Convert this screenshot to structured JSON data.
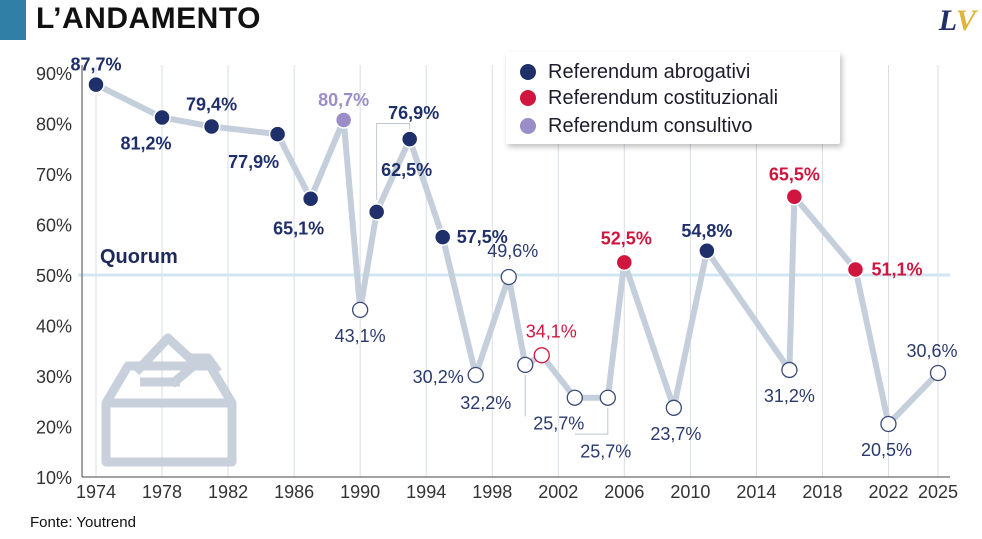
{
  "header": {
    "title": "L’ANDAMENTO",
    "logo_l": "L",
    "logo_v": "V"
  },
  "source": "Fonte: Youtrend",
  "quorum_label": "Quorum",
  "legend": {
    "items": [
      {
        "label": "Referendum abrogativi",
        "color": "#1f2f6a"
      },
      {
        "label": "Referendum costituzionali",
        "color": "#d0163e"
      },
      {
        "label": "Referendum consultivo",
        "color": "#9b8dc8"
      }
    ]
  },
  "chart_data": {
    "type": "line",
    "xlabel": "",
    "ylabel": "",
    "ylim": [
      10,
      90
    ],
    "yticks": [
      10,
      20,
      30,
      40,
      50,
      60,
      70,
      80,
      90
    ],
    "ytick_labels": [
      "10%",
      "20%",
      "30%",
      "40%",
      "50%",
      "60%",
      "70%",
      "80%",
      "90%"
    ],
    "xticks": [
      1974,
      1978,
      1982,
      1986,
      1990,
      1994,
      1998,
      2002,
      2006,
      2010,
      2014,
      2018,
      2022,
      2025
    ],
    "quorum": 50,
    "grid": "vertical",
    "legend_position": "top-right",
    "points": [
      {
        "year": 1974,
        "value": 87.7,
        "label": "87,7%",
        "kind": "abrogativo",
        "above_quorum": true
      },
      {
        "year": 1978,
        "value": 81.2,
        "label": "81,2%",
        "kind": "abrogativo",
        "above_quorum": true
      },
      {
        "year": 1981,
        "value": 79.4,
        "label": "79,4%",
        "kind": "abrogativo",
        "above_quorum": true
      },
      {
        "year": 1985,
        "value": 77.9,
        "label": "77,9%",
        "kind": "abrogativo",
        "above_quorum": true
      },
      {
        "year": 1987,
        "value": 65.1,
        "label": "65,1%",
        "kind": "abrogativo",
        "above_quorum": true
      },
      {
        "year": 1989,
        "value": 80.7,
        "label": "80,7%",
        "kind": "consultivo",
        "above_quorum": true
      },
      {
        "year": 1990,
        "value": 43.1,
        "label": "43,1%",
        "kind": "abrogativo",
        "above_quorum": false
      },
      {
        "year": 1991,
        "value": 62.5,
        "label": "62,5%",
        "kind": "abrogativo",
        "above_quorum": true
      },
      {
        "year": 1993,
        "value": 76.9,
        "label": "76,9%",
        "kind": "abrogativo",
        "above_quorum": true
      },
      {
        "year": 1995,
        "value": 57.5,
        "label": "57,5%",
        "kind": "abrogativo",
        "above_quorum": true
      },
      {
        "year": 1997,
        "value": 30.2,
        "label": "30,2%",
        "kind": "abrogativo",
        "above_quorum": false
      },
      {
        "year": 1999,
        "value": 49.6,
        "label": "49,6%",
        "kind": "abrogativo",
        "above_quorum": false
      },
      {
        "year": 2000,
        "value": 32.2,
        "label": "32,2%",
        "kind": "abrogativo",
        "above_quorum": false
      },
      {
        "year": 2001,
        "value": 34.1,
        "label": "34,1%",
        "kind": "costituzionale",
        "above_quorum": false
      },
      {
        "year": 2003,
        "value": 25.7,
        "label": "25,7%",
        "kind": "abrogativo",
        "above_quorum": false
      },
      {
        "year": 2005,
        "value": 25.7,
        "label": "25,7%",
        "kind": "abrogativo",
        "above_quorum": false
      },
      {
        "year": 2006,
        "value": 52.5,
        "label": "52,5%",
        "kind": "costituzionale",
        "above_quorum": true
      },
      {
        "year": 2009,
        "value": 23.7,
        "label": "23,7%",
        "kind": "abrogativo",
        "above_quorum": false
      },
      {
        "year": 2011,
        "value": 54.8,
        "label": "54,8%",
        "kind": "abrogativo",
        "above_quorum": true
      },
      {
        "year": 2016,
        "value": 31.2,
        "label": "31,2%",
        "kind": "abrogativo",
        "above_quorum": false
      },
      {
        "year": 2016.3,
        "value": 65.5,
        "label": "65,5%",
        "kind": "costituzionale",
        "above_quorum": true
      },
      {
        "year": 2020,
        "value": 51.1,
        "label": "51,1%",
        "kind": "costituzionale",
        "above_quorum": true
      },
      {
        "year": 2022,
        "value": 20.5,
        "label": "20,5%",
        "kind": "abrogativo",
        "above_quorum": false
      },
      {
        "year": 2025,
        "value": 30.6,
        "label": "30,6%",
        "kind": "abrogativo",
        "above_quorum": false
      }
    ]
  }
}
